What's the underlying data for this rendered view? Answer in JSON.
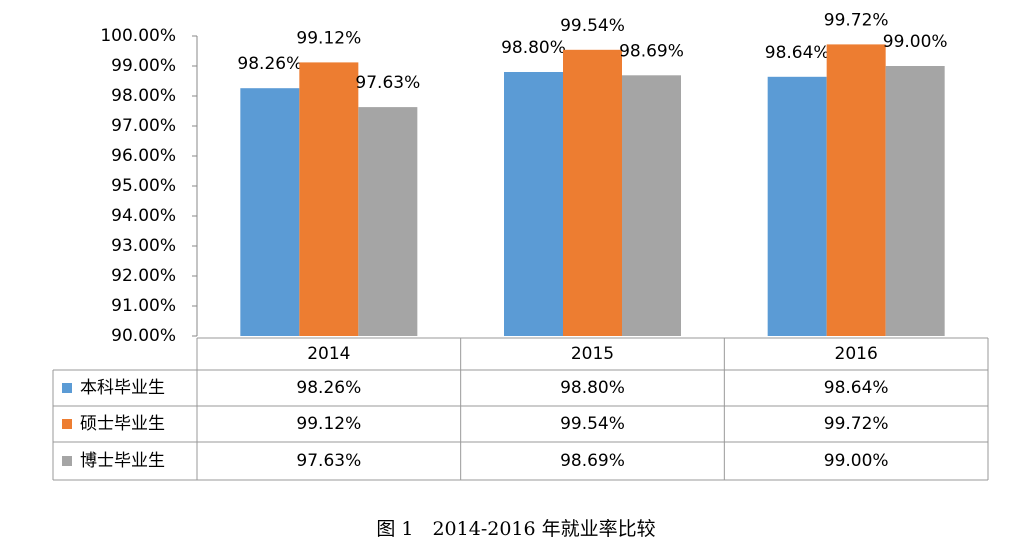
{
  "chart_data": {
    "type": "bar",
    "title": "图 1　2014-2016 年就业率比较",
    "categories": [
      "2014",
      "2015",
      "2016"
    ],
    "series": [
      {
        "name": "本科毕业生",
        "color": "#5b9bd5",
        "values": [
          98.26,
          98.8,
          98.64
        ],
        "value_labels": [
          "98.26%",
          "98.80%",
          "98.64%"
        ]
      },
      {
        "name": "硕士毕业生",
        "color": "#ed7d31",
        "values": [
          99.12,
          99.54,
          99.72
        ],
        "value_labels": [
          "99.12%",
          "99.54%",
          "99.72%"
        ]
      },
      {
        "name": "博士毕业生",
        "color": "#a5a5a5",
        "values": [
          97.63,
          98.69,
          99.0
        ],
        "value_labels": [
          "97.63%",
          "98.69%",
          "99.00%"
        ]
      }
    ],
    "ylim": [
      90,
      100
    ],
    "yticks": [
      {
        "value": 90,
        "label": "90.00%"
      },
      {
        "value": 91,
        "label": "91.00%"
      },
      {
        "value": 92,
        "label": "92.00%"
      },
      {
        "value": 93,
        "label": "93.00%"
      },
      {
        "value": 94,
        "label": "94.00%"
      },
      {
        "value": 95,
        "label": "95.00%"
      },
      {
        "value": 96,
        "label": "96.00%"
      },
      {
        "value": 97,
        "label": "97.00%"
      },
      {
        "value": 98,
        "label": "98.00%"
      },
      {
        "value": 99,
        "label": "99.00%"
      },
      {
        "value": 100,
        "label": "100.00%"
      }
    ],
    "grid": false,
    "data_table": true
  }
}
